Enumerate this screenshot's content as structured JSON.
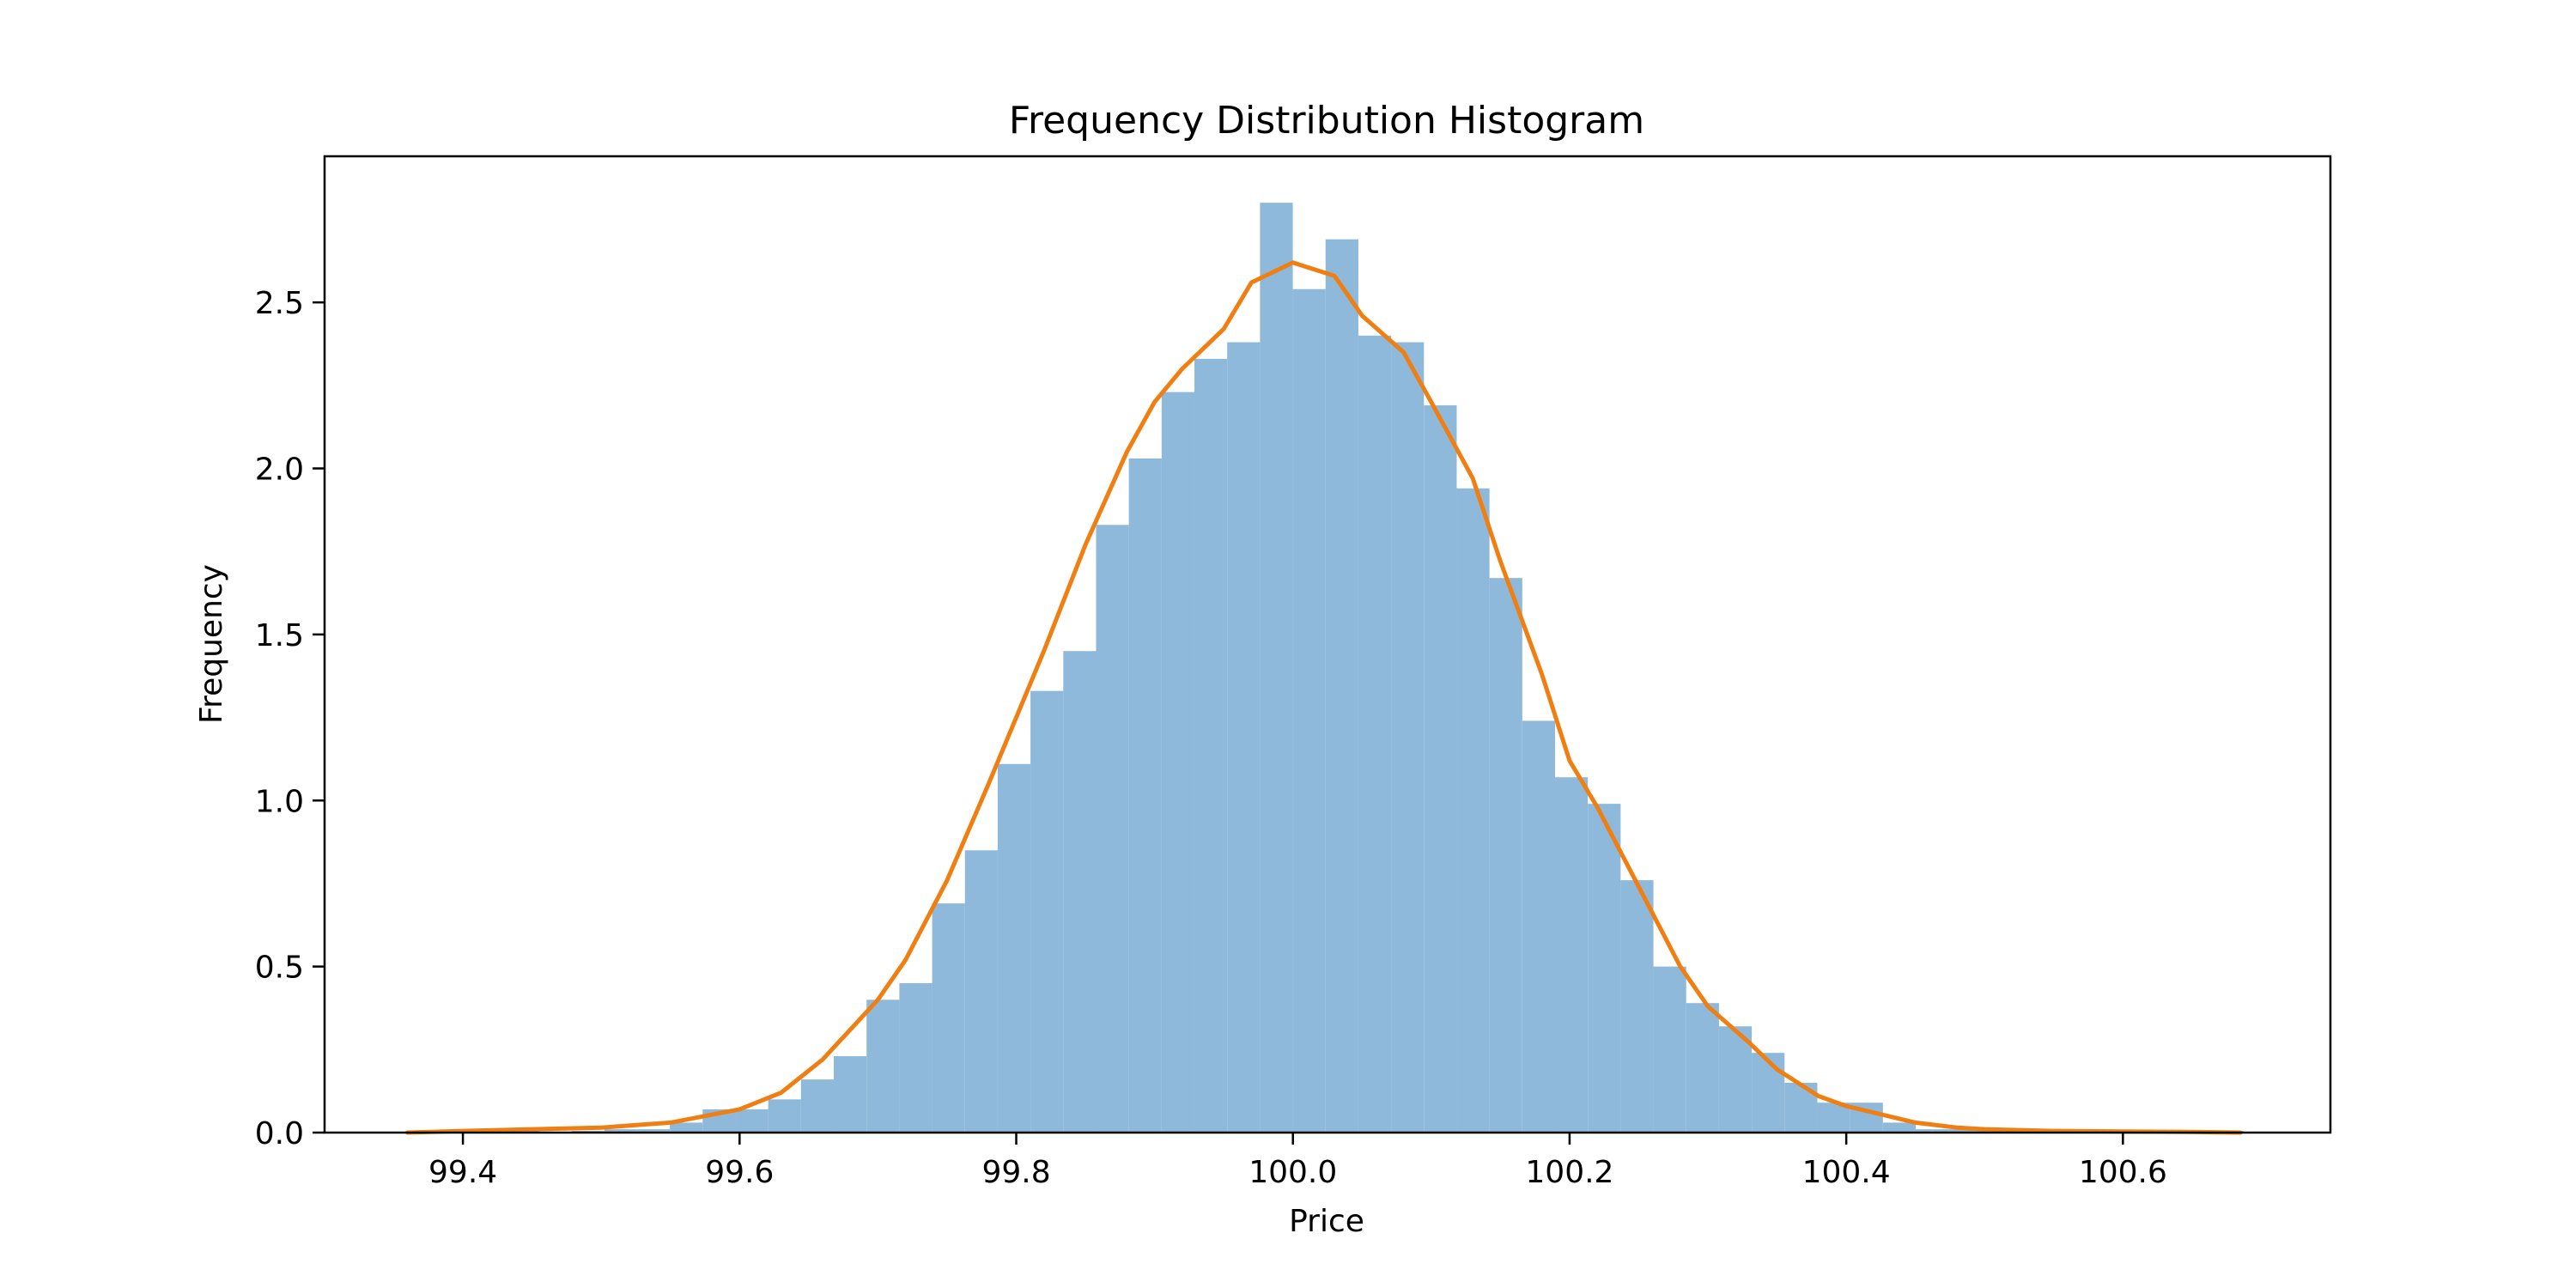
{
  "chart_data": {
    "type": "bar",
    "title": "Frequency Distribution Histogram",
    "xlabel": "Price",
    "ylabel": "Frequency",
    "xlim": [
      99.3,
      100.75
    ],
    "ylim": [
      0,
      2.94
    ],
    "xticks": [
      99.4,
      99.6,
      99.8,
      100.0,
      100.2,
      100.4,
      100.6
    ],
    "xtick_labels": [
      "99.4",
      "99.6",
      "99.8",
      "100.0",
      "100.2",
      "100.4",
      "100.6"
    ],
    "yticks": [
      0.0,
      0.5,
      1.0,
      1.5,
      2.0,
      2.5
    ],
    "ytick_labels": [
      "0.0",
      "0.5",
      "1.0",
      "1.5",
      "2.0",
      "2.5"
    ],
    "grid": false,
    "histogram": {
      "name": "",
      "color": "#8fb9da",
      "bin_width": 0.0237,
      "bin_edges": [
        99.36,
        99.3837,
        99.4074,
        99.4311,
        99.4548,
        99.4785,
        99.5022,
        99.5259,
        99.5496,
        99.5733,
        99.597,
        99.6207,
        99.6444,
        99.6681,
        99.6918,
        99.7155,
        99.7392,
        99.7629,
        99.7866,
        99.8103,
        99.834,
        99.8577,
        99.8814,
        99.9051,
        99.9288,
        99.9525,
        99.9762,
        99.9999,
        100.0236,
        100.0473,
        100.071,
        100.0947,
        100.1184,
        100.1421,
        100.1658,
        100.1895,
        100.2132,
        100.2369,
        100.2606,
        100.2843,
        100.308,
        100.3317,
        100.3554,
        100.3791,
        100.4028,
        100.4265,
        100.4502,
        100.4739,
        100.4976,
        100.5213,
        100.545,
        100.5687,
        100.5924,
        100.6161,
        100.6398,
        100.6635,
        100.6872
      ],
      "values": [
        0.005,
        0.0,
        0.0,
        0.005,
        0.0,
        0.005,
        0.01,
        0.01,
        0.03,
        0.07,
        0.07,
        0.1,
        0.16,
        0.23,
        0.4,
        0.45,
        0.69,
        0.85,
        1.11,
        1.33,
        1.45,
        1.83,
        2.03,
        2.23,
        2.33,
        2.38,
        2.8,
        2.54,
        2.69,
        2.4,
        2.38,
        2.19,
        1.94,
        1.67,
        1.24,
        1.07,
        0.99,
        0.76,
        0.5,
        0.39,
        0.32,
        0.24,
        0.15,
        0.09,
        0.09,
        0.03,
        0.01,
        0.01,
        0.005,
        0.005,
        0.0,
        0.0,
        0.005,
        0.0,
        0.0,
        0.005
      ]
    },
    "density_curve": {
      "name": "",
      "color": "#f07f13",
      "x": [
        99.36,
        99.4,
        99.45,
        99.5,
        99.55,
        99.6,
        99.63,
        99.66,
        99.7,
        99.72,
        99.75,
        99.78,
        99.8,
        99.82,
        99.85,
        99.88,
        99.9,
        99.92,
        99.95,
        99.97,
        100.0,
        100.03,
        100.05,
        100.08,
        100.1,
        100.13,
        100.15,
        100.18,
        100.2,
        100.22,
        100.25,
        100.28,
        100.3,
        100.33,
        100.35,
        100.38,
        100.4,
        100.43,
        100.45,
        100.48,
        100.5,
        100.55,
        100.6,
        100.65,
        100.685
      ],
      "y": [
        0.0,
        0.005,
        0.01,
        0.015,
        0.03,
        0.07,
        0.12,
        0.22,
        0.4,
        0.52,
        0.76,
        1.05,
        1.25,
        1.45,
        1.77,
        2.05,
        2.2,
        2.3,
        2.42,
        2.56,
        2.62,
        2.58,
        2.46,
        2.35,
        2.2,
        1.97,
        1.72,
        1.38,
        1.12,
        0.98,
        0.74,
        0.5,
        0.38,
        0.27,
        0.19,
        0.11,
        0.08,
        0.05,
        0.03,
        0.015,
        0.01,
        0.005,
        0.003,
        0.002,
        0.0
      ]
    }
  }
}
